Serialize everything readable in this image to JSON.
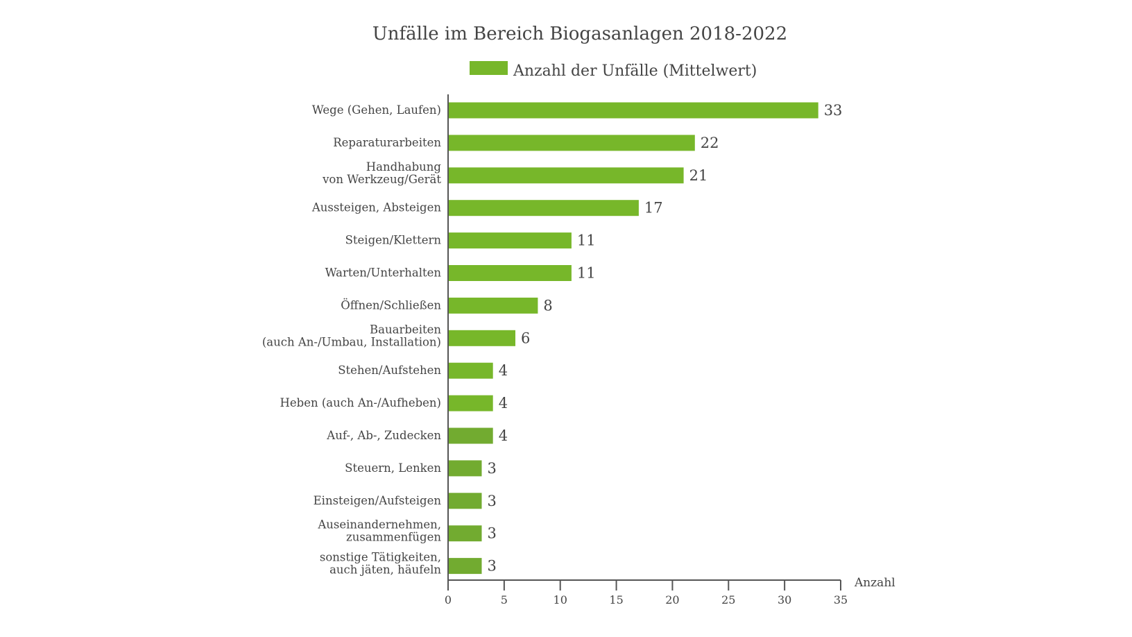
{
  "chart_data": {
    "type": "bar",
    "orientation": "horizontal",
    "title": "Unfälle im Bereich Biogasanlagen 2018-2022",
    "xlabel": "Anzahl",
    "ylabel": "",
    "xlim": [
      0,
      35
    ],
    "x_ticks": [
      0,
      5,
      10,
      15,
      20,
      25,
      30,
      35
    ],
    "grid": false,
    "legend_position": "top-center",
    "legend": [
      "Anzahl der Unfälle (Mittelwert)"
    ],
    "categories": [
      [
        "Wege (Gehen, Laufen)"
      ],
      [
        "Reparaturarbeiten"
      ],
      [
        "Handhabung",
        "von Werkzeug/Gerät"
      ],
      [
        "Aussteigen, Absteigen"
      ],
      [
        "Steigen/Klettern"
      ],
      [
        "Warten/Unterhalten"
      ],
      [
        "Öffnen/Schließen"
      ],
      [
        "Bauarbeiten",
        "(auch An-/Umbau, Installation)"
      ],
      [
        "Stehen/Aufstehen"
      ],
      [
        "Heben (auch An-/Aufheben)"
      ],
      [
        "Auf-, Ab-, Zudecken"
      ],
      [
        "Steuern, Lenken"
      ],
      [
        "Einsteigen/Aufsteigen"
      ],
      [
        "Auseinandernehmen,",
        "zusammenfügen"
      ],
      [
        "sonstige Tätigkeiten,",
        "auch jäten, häufeln"
      ]
    ],
    "series": [
      {
        "name": "Anzahl der Unfälle (Mittelwert)",
        "values": [
          33,
          22,
          21,
          17,
          11,
          11,
          8,
          6,
          4,
          4,
          4,
          3,
          3,
          3,
          3
        ],
        "color": "#77b72a"
      }
    ],
    "bar_colors": [
      "#77b72a",
      "#77b72a",
      "#77b72a",
      "#77b72a",
      "#77b72a",
      "#77b72a",
      "#77b72a",
      "#77b72a",
      "#77b72a",
      "#77b72a",
      "#72ab30",
      "#72ab30",
      "#72ab30",
      "#72ab30",
      "#72ab30"
    ],
    "axis_color": "#555555"
  }
}
